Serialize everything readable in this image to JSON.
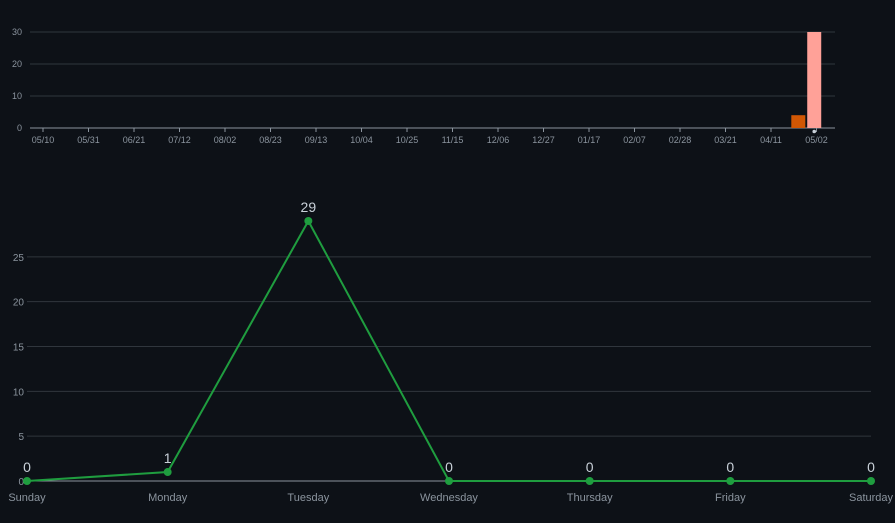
{
  "colors": {
    "background": "#0d1117",
    "grid": "#30363d",
    "axis": "#8b949e",
    "tick_text": "#8b949e",
    "label_text": "#c9d1d9",
    "line": "#1f9d3f",
    "bar_series_a": "#d15704",
    "bar_series_b": "#ffa198"
  },
  "chart_data": [
    {
      "type": "bar",
      "title": "",
      "xlabel": "",
      "ylabel": "",
      "ylim": [
        0,
        30
      ],
      "yticks": [
        "0",
        "10",
        "20",
        "30"
      ],
      "grid": true,
      "legend": "none",
      "categories": [
        "05/10",
        "05/31",
        "06/21",
        "07/12",
        "08/02",
        "08/23",
        "09/13",
        "10/04",
        "10/25",
        "11/15",
        "12/06",
        "12/27",
        "01/17",
        "02/07",
        "02/28",
        "03/21",
        "04/11",
        "05/02"
      ],
      "series": [
        {
          "color": "#d15704",
          "points": [
            {
              "x": 16.6,
              "y": 4
            }
          ]
        },
        {
          "color": "#ffa198",
          "points": [
            {
              "x": 16.95,
              "y": 30
            }
          ]
        }
      ],
      "marker_at": 16.95
    },
    {
      "type": "line",
      "title": "",
      "xlabel": "",
      "ylabel": "",
      "ylim": [
        0,
        30
      ],
      "yticks": [
        "0",
        "5",
        "10",
        "15",
        "20",
        "25"
      ],
      "grid": true,
      "legend": "none",
      "categories": [
        "Sunday",
        "Monday",
        "Tuesday",
        "Wednesday",
        "Thursday",
        "Friday",
        "Saturday"
      ],
      "values": [
        0,
        1,
        29,
        0,
        0,
        0,
        0
      ],
      "data_labels": [
        "0",
        "1",
        "29",
        "0",
        "0",
        "0",
        "0"
      ]
    }
  ]
}
